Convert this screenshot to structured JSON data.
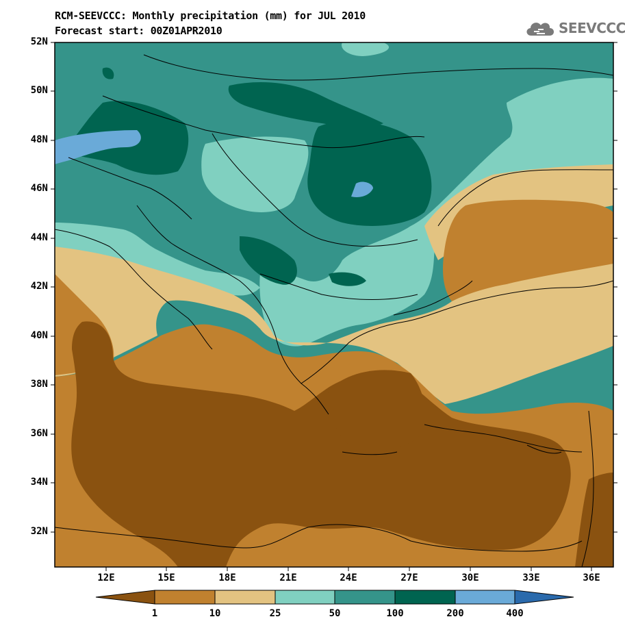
{
  "header": {
    "title_line1": "RCM-SEEVCCC: Monthly precipitation (mm) for JUL 2010",
    "title_line2": "Forecast start: 00Z01APR2010"
  },
  "logo": {
    "text": "SEEVCCC",
    "icon": "cloud-icon"
  },
  "map": {
    "variable": "Monthly precipitation",
    "units": "mm",
    "lat_range": [
      30.5,
      52
    ],
    "lon_range": [
      9.5,
      37
    ],
    "lat_ticks": [
      "52N",
      "50N",
      "48N",
      "46N",
      "44N",
      "42N",
      "40N",
      "38N",
      "36N",
      "34N",
      "32N"
    ],
    "lon_ticks": [
      "12E",
      "15E",
      "18E",
      "21E",
      "24E",
      "27E",
      "30E",
      "33E",
      "36E"
    ]
  },
  "legend": {
    "levels": [
      "1",
      "10",
      "25",
      "50",
      "100",
      "200",
      "400"
    ],
    "colors": [
      "#8a5210",
      "#c0812f",
      "#e3c381",
      "#80d0c0",
      "#35948a",
      "#006450",
      "#6aaad8",
      "#2a6aac"
    ]
  }
}
